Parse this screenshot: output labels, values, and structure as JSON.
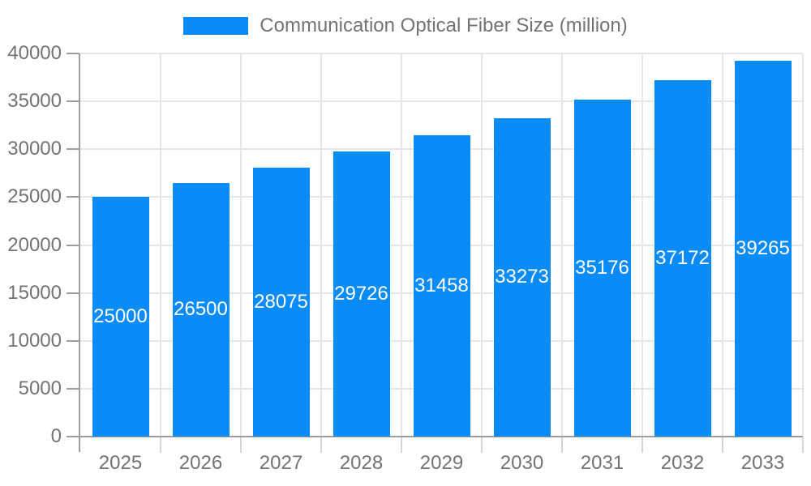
{
  "chart_data": {
    "type": "bar",
    "categories": [
      "2025",
      "2026",
      "2027",
      "2028",
      "2029",
      "2030",
      "2031",
      "2032",
      "2033"
    ],
    "series": [
      {
        "name": "Communication Optical Fiber Size (million)",
        "values": [
          25000,
          26500,
          28075,
          29726,
          31458,
          33273,
          35176,
          37172,
          39265
        ]
      }
    ],
    "ylim": [
      0,
      40000
    ],
    "y_ticks": [
      0,
      5000,
      10000,
      15000,
      20000,
      25000,
      30000,
      35000,
      40000
    ],
    "grid": true,
    "legend_position": "top",
    "show_value_labels": true,
    "colors": {
      "bar": "#0a8cf8",
      "bar_value_label": "#ffffff",
      "axis_text": "#737373",
      "gridline": "#e6e6e6",
      "axis_line": "#9e9e9e",
      "category_tick": "#d6d6d6",
      "background": "#ffffff"
    }
  }
}
